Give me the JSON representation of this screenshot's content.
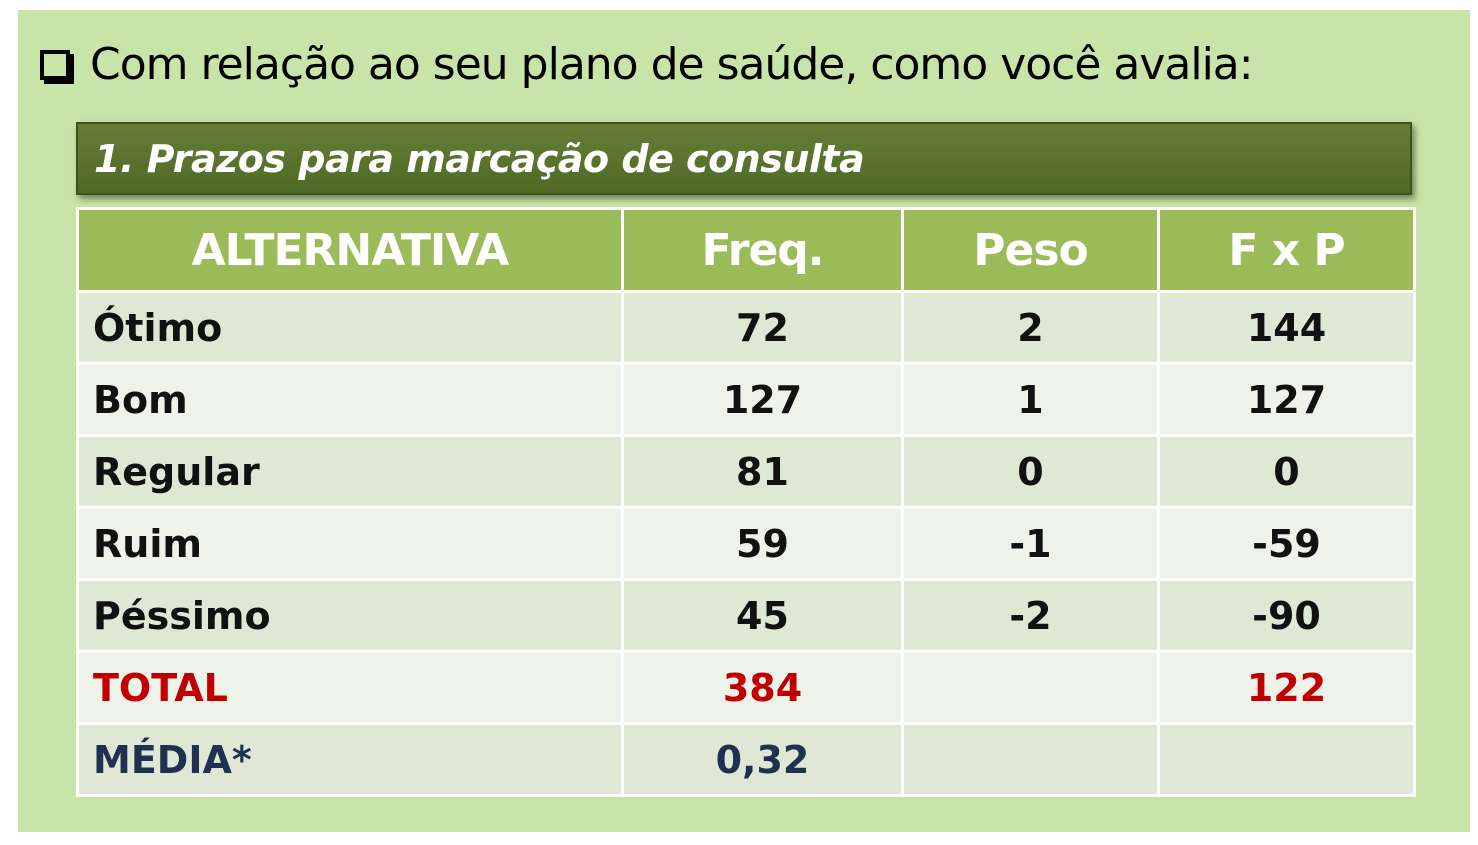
{
  "title": {
    "text": "Com relação ao seu plano de saúde, como você avalia:"
  },
  "banner": {
    "text": "1. Prazos para marcação de consulta"
  },
  "table": {
    "headers": [
      "ALTERNATIVA",
      "Freq.",
      "Peso",
      "F x P"
    ],
    "rows": [
      [
        "Ótimo",
        "72",
        "2",
        "144"
      ],
      [
        "Bom",
        "127",
        "1",
        "127"
      ],
      [
        "Regular",
        "81",
        "0",
        "0"
      ],
      [
        "Ruim",
        "59",
        "-1",
        "-59"
      ],
      [
        "Péssimo",
        "45",
        "-2",
        "-90"
      ],
      [
        "TOTAL",
        "384",
        "",
        "122"
      ],
      [
        "MÉDIA*",
        "0,32",
        "",
        ""
      ]
    ]
  },
  "colors": {
    "background": "#c8e4a8",
    "banner": "#5a7430",
    "header": "#9bbb59",
    "row_odd": "#dfe8d4",
    "row_even": "#eff2e8",
    "total": "#c00000",
    "media": "#1f3050"
  }
}
